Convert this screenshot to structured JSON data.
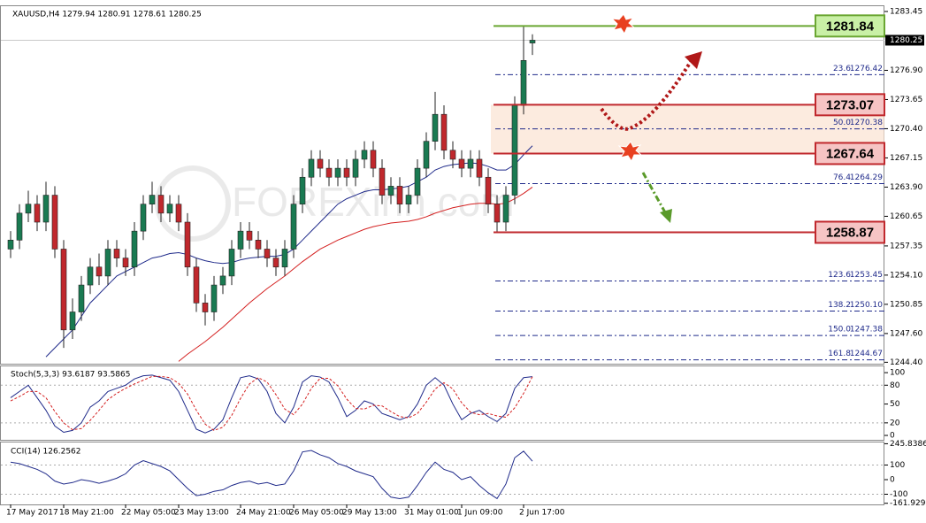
{
  "chart_data": [
    {
      "type": "candlestick",
      "title": "XAUUSD,H4  1279.94 1280.91 1278.61 1280.25",
      "watermark": "FOREXinn.com",
      "bull_color": "#1a7a52",
      "bear_color": "#c0282d",
      "categories": [
        "17 May 2017",
        null,
        null,
        null,
        null,
        null,
        "18 May 21:00",
        null,
        null,
        null,
        null,
        null,
        null,
        "22 May 05:00",
        null,
        null,
        null,
        null,
        null,
        "23 May 13:00",
        null,
        null,
        null,
        null,
        null,
        null,
        "24 May 21:00",
        null,
        null,
        null,
        null,
        null,
        "26 May 05:00",
        null,
        null,
        null,
        null,
        null,
        "29 May 13:00",
        null,
        null,
        null,
        null,
        null,
        null,
        "31 May 01:00",
        null,
        null,
        null,
        null,
        null,
        "1 Jun 09:00",
        null,
        null,
        null,
        null,
        null,
        null,
        "2 Jun 17:00",
        null
      ],
      "open": [
        1257,
        1258,
        1261,
        1262,
        1260,
        1263,
        1257,
        1248,
        1250,
        1253,
        1255,
        1254,
        1257,
        1256,
        1255,
        1259,
        1262,
        1263,
        1261,
        1262,
        1260,
        1255,
        1251,
        1250,
        1253,
        1254,
        1257,
        1259,
        1258,
        1257,
        1256,
        1255,
        1257,
        1262,
        1265,
        1267,
        1266,
        1265,
        1266,
        1265,
        1267,
        1268,
        1266,
        1263,
        1264,
        1262,
        1263,
        1266,
        1269,
        1272,
        1268,
        1267,
        1266,
        1267,
        1265,
        1262,
        1260,
        1263,
        1273,
        1279.94
      ],
      "high": [
        1259,
        1262,
        1263.5,
        1263,
        1264.5,
        1264,
        1258,
        1251.5,
        1254,
        1256,
        1256.5,
        1258,
        1258,
        1257,
        1260,
        1263,
        1264.5,
        1264,
        1263,
        1263,
        1261,
        1256,
        1252,
        1254,
        1255,
        1258,
        1260,
        1260,
        1259,
        1258,
        1257,
        1258,
        1263,
        1266,
        1268,
        1268,
        1267,
        1267,
        1267,
        1268,
        1269,
        1269,
        1267,
        1265,
        1265,
        1264,
        1267,
        1270,
        1274.5,
        1273,
        1269,
        1268,
        1268,
        1268,
        1266,
        1263,
        1264,
        1274,
        1281.84,
        1280.91
      ],
      "low": [
        1256,
        1257,
        1260,
        1259,
        1259,
        1256,
        1246,
        1247,
        1249,
        1252,
        1253,
        1253,
        1255,
        1254,
        1254,
        1258,
        1261,
        1260,
        1260,
        1259,
        1254,
        1250,
        1248.5,
        1249,
        1252,
        1253,
        1256,
        1257,
        1256,
        1255,
        1254,
        1254,
        1256,
        1261,
        1264,
        1265,
        1264,
        1264,
        1264,
        1264,
        1266,
        1265,
        1262,
        1262,
        1261,
        1261,
        1262,
        1265,
        1268,
        1267,
        1266,
        1265,
        1265,
        1264,
        1261,
        1258.87,
        1259,
        1262,
        1272,
        1278.61
      ],
      "close": [
        1258,
        1261,
        1262,
        1260,
        1263,
        1257,
        1248,
        1250,
        1253,
        1255,
        1254,
        1257,
        1256,
        1255,
        1259,
        1262,
        1263,
        1261,
        1262,
        1260,
        1255,
        1251,
        1250,
        1253,
        1254,
        1257,
        1259,
        1258,
        1257,
        1256,
        1255,
        1257,
        1262,
        1265,
        1267,
        1266,
        1265,
        1266,
        1265,
        1267,
        1268,
        1266,
        1263,
        1264,
        1262,
        1263,
        1266,
        1269,
        1272,
        1268,
        1267,
        1266,
        1267,
        1265,
        1262,
        1260,
        1263,
        1273,
        1278,
        1280.25
      ],
      "series": [
        {
          "color": "#1f2a8a",
          "values": [
            null,
            null,
            null,
            null,
            1245,
            1246,
            1247,
            1248,
            1249.5,
            1251,
            1252,
            1253,
            1254,
            1254.5,
            1255,
            1255.5,
            1256,
            1256.2,
            1256.5,
            1256.6,
            1256.4,
            1256,
            1255.7,
            1255.5,
            1255.4,
            1255.5,
            1255.8,
            1256,
            1256.1,
            1256.2,
            1256.2,
            1256.4,
            1257,
            1258,
            1259,
            1260,
            1261,
            1262,
            1262.6,
            1263,
            1263.4,
            1263.6,
            1263.6,
            1263.7,
            1263.8,
            1264,
            1264.5,
            1265,
            1265.8,
            1266.2,
            1266.4,
            1266.5,
            1266.6,
            1266.5,
            1266.2,
            1265.8,
            1265.8,
            1266.4,
            1267.5,
            1268.5
          ]
        },
        {
          "color": "#d42020",
          "values": [
            null,
            null,
            null,
            null,
            null,
            null,
            null,
            null,
            null,
            null,
            null,
            null,
            null,
            null,
            null,
            null,
            null,
            null,
            null,
            1244.5,
            1245.3,
            1246,
            1246.7,
            1247.5,
            1248.3,
            1249.2,
            1250.1,
            1251,
            1251.8,
            1252.6,
            1253.3,
            1254,
            1254.8,
            1255.6,
            1256.3,
            1257,
            1257.5,
            1258,
            1258.4,
            1258.8,
            1259.2,
            1259.5,
            1259.7,
            1259.9,
            1260,
            1260.1,
            1260.3,
            1260.6,
            1261,
            1261.3,
            1261.6,
            1261.8,
            1262,
            1262.1,
            1262.1,
            1262,
            1262.1,
            1262.6,
            1263.2,
            1263.9
          ]
        }
      ],
      "ylim": [
        1244.14,
        1283.94
      ],
      "yticks": [
        1283.45,
        {
          "value": 1276.9,
          "label": "1276.90"
        },
        1273.65,
        {
          "value": 1270.4,
          "label": "1270.40"
        },
        1267.15,
        {
          "value": 1263.9,
          "label": "1263.90"
        },
        1260.65,
        1257.35,
        {
          "value": 1254.1,
          "label": "1254.10"
        },
        1250.85,
        {
          "value": 1247.6,
          "label": "1247.60"
        },
        {
          "value": 1244.4,
          "label": "1244.40"
        }
      ],
      "levels": [
        {
          "value": 1281.84,
          "color": "#6aa632",
          "fill": "#c9f0a6"
        },
        {
          "value": 1273.07,
          "color": "#c0282d",
          "fill": "#f6c4c4"
        },
        {
          "value": 1267.64,
          "color": "#c0282d",
          "fill": "#f6c4c4"
        },
        {
          "value": 1258.87,
          "color": "#c0282d",
          "fill": "#f6c4c4"
        }
      ],
      "fib_color": "#1f2a8a",
      "fib_levels": [
        {
          "ratio": 23.6,
          "price": 1276.42
        },
        {
          "ratio": {
            "value": 50,
            "label": "50.0"
          },
          "price": 1270.38
        },
        {
          "ratio": 76.4,
          "price": 1264.29
        },
        {
          "ratio": 123.6,
          "price": 1253.45
        },
        {
          "ratio": 138.2,
          "price": {
            "value": 1250.1,
            "label": "1250.10"
          }
        },
        {
          "ratio": {
            "value": 150,
            "label": "150.0"
          },
          "price": 1247.38
        },
        {
          "ratio": 161.8,
          "price": 1244.67
        }
      ]
    },
    {
      "type": "line",
      "title": "Stoch(5,3,3) 93.6187 93.5865",
      "series": [
        {
          "color": "#1f2a8a",
          "values": [
            60,
            70,
            80,
            60,
            40,
            15,
            5,
            8,
            20,
            45,
            55,
            70,
            75,
            80,
            90,
            95,
            96,
            92,
            88,
            70,
            40,
            10,
            4,
            10,
            25,
            60,
            92,
            95,
            90,
            70,
            35,
            20,
            45,
            85,
            95,
            93,
            85,
            60,
            30,
            40,
            55,
            50,
            35,
            30,
            25,
            30,
            50,
            80,
            92,
            80,
            50,
            25,
            35,
            40,
            30,
            22,
            35,
            75,
            92,
            93.6187
          ]
        },
        {
          "color": "#d42020",
          "dashed": true,
          "values": [
            55,
            62,
            70,
            70,
            60,
            38,
            20,
            9,
            11,
            24,
            40,
            57,
            67,
            75,
            82,
            88,
            94,
            94,
            92,
            83,
            66,
            40,
            18,
            8,
            13,
            32,
            59,
            82,
            92,
            85,
            65,
            42,
            33,
            50,
            75,
            91,
            91,
            79,
            58,
            43,
            42,
            48,
            47,
            38,
            30,
            28,
            35,
            53,
            74,
            84,
            74,
            52,
            37,
            33,
            35,
            31,
            29,
            44,
            67,
            93.5865
          ]
        }
      ],
      "ylim": [
        -7,
        110
      ],
      "yticks": [
        100,
        80,
        50,
        20,
        0
      ],
      "levels": [
        80,
        20
      ]
    },
    {
      "type": "line",
      "title": "CCI(14) 126.2562",
      "series": [
        {
          "color": "#1f2a8a",
          "values": [
            120,
            110,
            90,
            70,
            40,
            -10,
            -30,
            -20,
            0,
            -10,
            -25,
            -10,
            10,
            40,
            100,
            130,
            110,
            90,
            60,
            0,
            -60,
            -110,
            -100,
            -80,
            -70,
            -40,
            -20,
            -10,
            -30,
            -20,
            -40,
            -30,
            60,
            190,
            200,
            170,
            150,
            110,
            90,
            60,
            40,
            20,
            -60,
            -120,
            -130,
            -120,
            -40,
            50,
            120,
            70,
            50,
            0,
            20,
            -40,
            -90,
            -130,
            -30,
            150,
            195,
            126.2562
          ]
        }
      ],
      "ylim": [
        -169.7,
        260.6
      ],
      "yticks": [
        245.8386,
        100,
        0,
        -100,
        -161.9291
      ],
      "levels": [
        100,
        -100
      ]
    }
  ]
}
